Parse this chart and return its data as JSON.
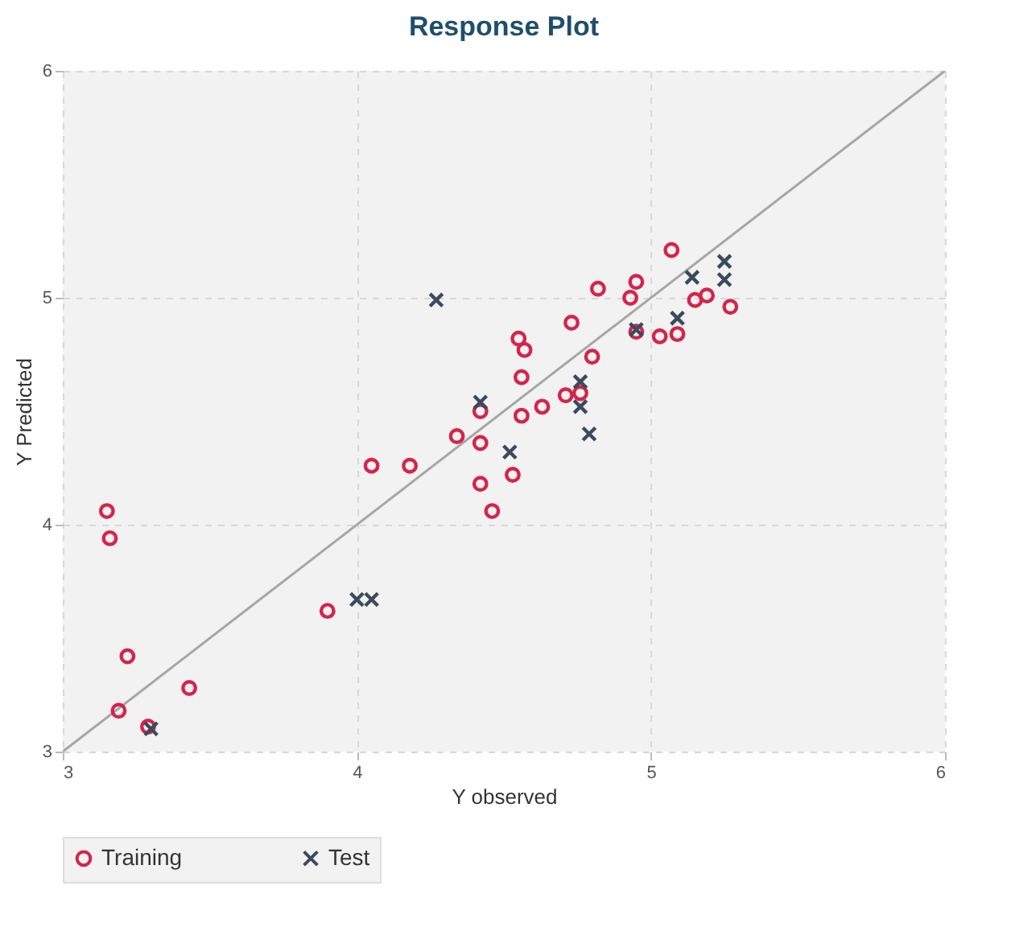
{
  "chart_data": {
    "type": "scatter",
    "title": "Response Plot",
    "xlabel": "Y observed",
    "ylabel": "Y Predicted",
    "xlim": [
      3,
      6
    ],
    "ylim": [
      3,
      6
    ],
    "xticks": [
      3,
      4,
      5,
      6
    ],
    "yticks": [
      3,
      4,
      5,
      6
    ],
    "grid": true,
    "legend": "bottom",
    "series": [
      {
        "type": "line",
        "color": "#a6a6a6",
        "marker": "none",
        "x": [
          3,
          6
        ],
        "values": [
          3,
          6
        ]
      },
      {
        "name": "Training",
        "color": "#d6244a",
        "marker": "circle",
        "x": [
          3.15,
          3.16,
          3.22,
          3.19,
          3.29,
          3.43,
          3.9,
          4.05,
          4.18,
          4.34,
          4.42,
          4.42,
          4.42,
          4.46,
          4.53,
          4.56,
          4.56,
          4.55,
          4.57,
          4.63,
          4.71,
          4.76,
          4.73,
          4.8,
          4.82,
          4.93,
          4.95,
          4.95,
          5.03,
          5.09,
          5.07,
          5.15,
          5.19,
          5.27
        ],
        "values": [
          4.06,
          3.94,
          3.42,
          3.18,
          3.11,
          3.28,
          3.62,
          4.26,
          4.26,
          4.39,
          4.36,
          4.5,
          4.18,
          4.06,
          4.22,
          4.48,
          4.65,
          4.82,
          4.77,
          4.52,
          4.57,
          4.58,
          4.89,
          4.74,
          5.04,
          5.0,
          5.07,
          4.85,
          4.83,
          4.84,
          5.21,
          4.99,
          5.01,
          4.96
        ]
      },
      {
        "name": "Test",
        "color": "#3b4a5c",
        "marker": "cross",
        "x": [
          4.27,
          4.0,
          4.05,
          3.3,
          4.42,
          4.52,
          4.76,
          4.76,
          4.79,
          4.95,
          5.09,
          5.14,
          5.25,
          5.25
        ],
        "values": [
          4.99,
          3.67,
          3.67,
          3.1,
          4.54,
          4.32,
          4.63,
          4.52,
          4.4,
          4.86,
          4.91,
          5.09,
          5.16,
          5.08
        ]
      }
    ]
  }
}
